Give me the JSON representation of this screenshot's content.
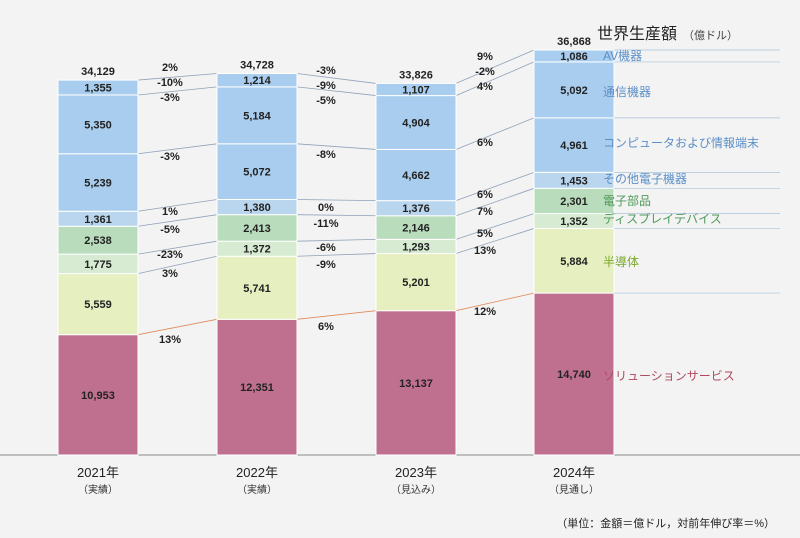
{
  "chart_data": {
    "type": "bar",
    "stacked": true,
    "title": "世界生産額",
    "title_unit": "（億ドル）",
    "note": "（単位：金額＝億ドル，対前年伸び率＝%）",
    "categories": [
      {
        "year": "2021年",
        "sub": "（実績）"
      },
      {
        "year": "2022年",
        "sub": "（実績）"
      },
      {
        "year": "2023年",
        "sub": "（見込み）"
      },
      {
        "year": "2024年",
        "sub": "（見通し）"
      }
    ],
    "totals": [
      "34,129",
      "34,728",
      "33,826",
      "36,868"
    ],
    "series": [
      {
        "name": "ソリューションサービス",
        "color": "#c0708f",
        "label_color": "#b0485f",
        "line_color": "#e08a5a",
        "values": [
          10953,
          12351,
          13137,
          14740
        ],
        "labels": [
          "10,953",
          "12,351",
          "13,137",
          "14,740"
        ],
        "growth": [
          "13%",
          "6%",
          "12%"
        ]
      },
      {
        "name": "半導体",
        "color": "#e6efbf",
        "label_color": "#7aa82a",
        "line_color": "#8fa2b8",
        "values": [
          5559,
          5741,
          5201,
          5884
        ],
        "labels": [
          "5,559",
          "5,741",
          "5,201",
          "5,884"
        ],
        "growth": [
          "3%",
          "-9%",
          "13%"
        ]
      },
      {
        "name": "ディスプレイデバイス",
        "color": "#d6ebd2",
        "label_color": "#4f9a5a",
        "line_color": "#8fa2b8",
        "values": [
          1775,
          1372,
          1293,
          1352
        ],
        "labels": [
          "1,775",
          "1,372",
          "1,293",
          "1,352"
        ],
        "growth": [
          "-23%",
          "-6%",
          "5%"
        ]
      },
      {
        "name": "電子部品",
        "color": "#b9dcbc",
        "label_color": "#4f9a5a",
        "line_color": "#8fa2b8",
        "values": [
          2538,
          2413,
          2146,
          2301
        ],
        "labels": [
          "2,538",
          "2,413",
          "2,146",
          "2,301"
        ],
        "growth": [
          "-5%",
          "-11%",
          "7%"
        ]
      },
      {
        "name": "その他電子機器",
        "color": "#b9d6ee",
        "label_color": "#5b8fc7",
        "line_color": "#8fa2b8",
        "values": [
          1361,
          1380,
          1376,
          1453
        ],
        "labels": [
          "1,361",
          "1,380",
          "1,376",
          "1,453"
        ],
        "growth": [
          "1%",
          "0%",
          "6%"
        ]
      },
      {
        "name": "コンピュータおよび情報端末",
        "color": "#a9cdee",
        "label_color": "#5b8fc7",
        "line_color": "#8fa2b8",
        "values": [
          5239,
          5072,
          4662,
          4961
        ],
        "labels": [
          "5,239",
          "5,072",
          "4,662",
          "4,961"
        ],
        "growth": [
          "-3%",
          "-8%",
          "6%"
        ]
      },
      {
        "name": "通信機器",
        "color": "#a9cdee",
        "label_color": "#5b8fc7",
        "line_color": "#8fa2b8",
        "values": [
          5350,
          5184,
          4904,
          5092
        ],
        "labels": [
          "5,350",
          "5,184",
          "4,904",
          "5,092"
        ],
        "growth": [
          "-3%",
          "-5%",
          "4%"
        ]
      },
      {
        "name": "AV機器",
        "color": "#a9cdee",
        "label_color": "#5b8fc7",
        "line_color": "#8fa2b8",
        "values": [
          1355,
          1214,
          1107,
          1086
        ],
        "labels": [
          "1,355",
          "1,214",
          "1,107",
          "1,086"
        ],
        "growth": [
          "-10%",
          "-9%",
          "-2%"
        ]
      }
    ],
    "total_growth": [
      "2%",
      "-3%",
      "9%"
    ],
    "ylim": [
      0,
      36868
    ]
  }
}
